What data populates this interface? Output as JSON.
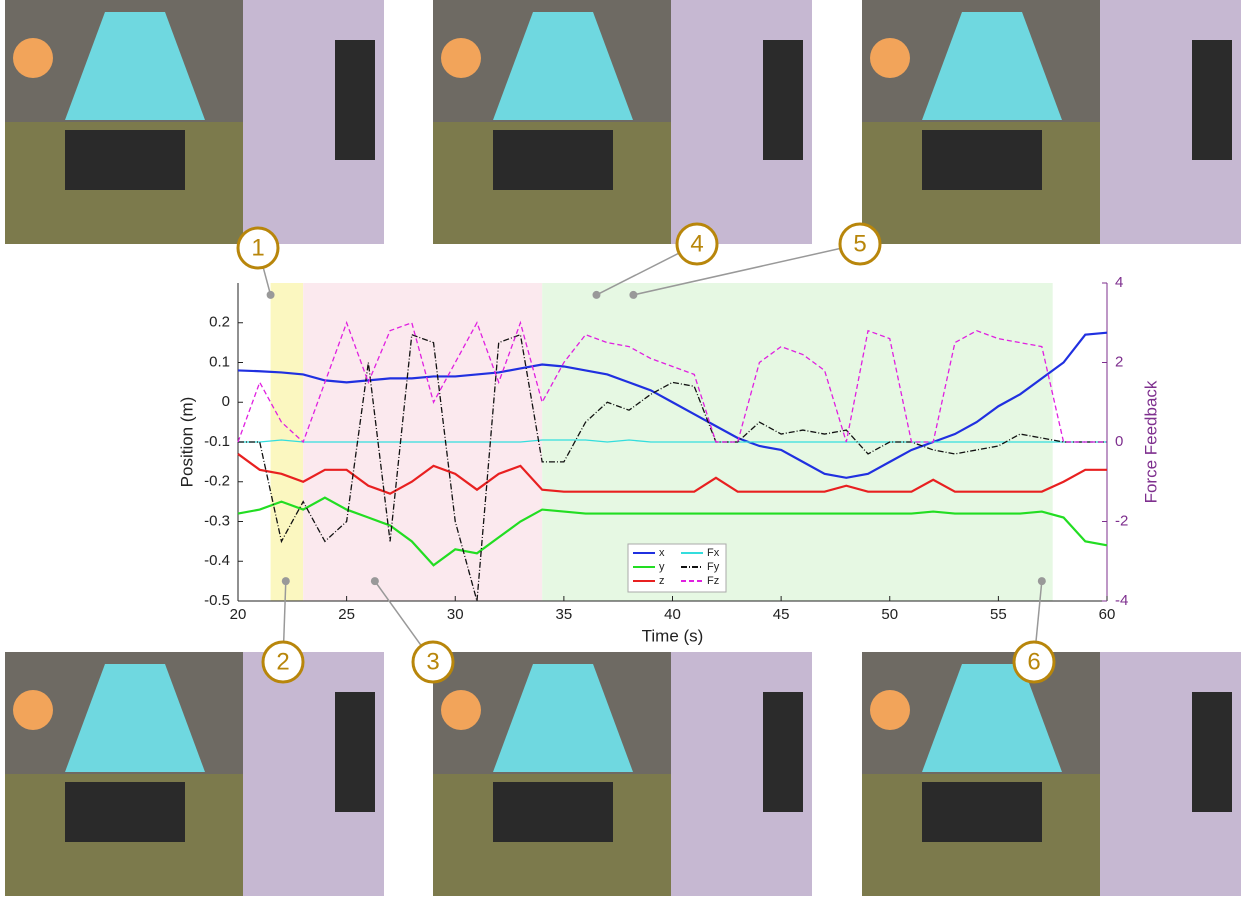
{
  "chart_data": {
    "type": "line",
    "x": [
      20,
      21,
      22,
      23,
      24,
      25,
      26,
      27,
      28,
      29,
      30,
      31,
      32,
      33,
      34,
      35,
      36,
      37,
      38,
      39,
      40,
      41,
      42,
      43,
      44,
      45,
      46,
      47,
      48,
      49,
      50,
      51,
      52,
      53,
      54,
      55,
      56,
      57,
      58,
      59,
      60
    ],
    "xlabel": "Time (s)",
    "ylabel": "Position (m)",
    "y2label": "Force Feedback",
    "xlim": [
      20,
      60
    ],
    "xticks": [
      20,
      25,
      30,
      35,
      40,
      45,
      50,
      55,
      60
    ],
    "ylim": [
      -0.5,
      0.3
    ],
    "yticks": [
      -0.5,
      -0.4,
      -0.3,
      -0.2,
      -0.1,
      0,
      0.1,
      0.2
    ],
    "y2lim": [
      -4,
      4
    ],
    "y2ticks": [
      -4,
      -2,
      0,
      2,
      4
    ],
    "y2color": "#7e2f8e",
    "regions": [
      {
        "start": 21.5,
        "end": 23,
        "color": "#fbf7c0"
      },
      {
        "start": 23,
        "end": 34,
        "color": "#fbe9ee"
      },
      {
        "start": 34,
        "end": 57.5,
        "color": "#e6f8e3"
      }
    ],
    "series": [
      {
        "name": "x",
        "color": "#2030e0",
        "dash": "solid",
        "axis": "y",
        "values": [
          0.08,
          0.078,
          0.075,
          0.07,
          0.055,
          0.05,
          0.055,
          0.06,
          0.06,
          0.065,
          0.065,
          0.07,
          0.075,
          0.085,
          0.095,
          0.09,
          0.08,
          0.07,
          0.05,
          0.03,
          0.0,
          -0.03,
          -0.06,
          -0.09,
          -0.11,
          -0.12,
          -0.15,
          -0.18,
          -0.19,
          -0.18,
          -0.15,
          -0.12,
          -0.1,
          -0.08,
          -0.05,
          -0.01,
          0.02,
          0.06,
          0.1,
          0.17,
          0.175
        ]
      },
      {
        "name": "y",
        "color": "#22dd22",
        "dash": "solid",
        "axis": "y",
        "values": [
          -0.28,
          -0.27,
          -0.25,
          -0.27,
          -0.24,
          -0.27,
          -0.29,
          -0.31,
          -0.35,
          -0.41,
          -0.37,
          -0.38,
          -0.34,
          -0.3,
          -0.27,
          -0.275,
          -0.28,
          -0.28,
          -0.28,
          -0.28,
          -0.28,
          -0.28,
          -0.28,
          -0.28,
          -0.28,
          -0.28,
          -0.28,
          -0.28,
          -0.28,
          -0.28,
          -0.28,
          -0.28,
          -0.275,
          -0.28,
          -0.28,
          -0.28,
          -0.28,
          -0.275,
          -0.29,
          -0.35,
          -0.36
        ]
      },
      {
        "name": "z",
        "color": "#e82020",
        "dash": "solid",
        "axis": "y",
        "values": [
          -0.13,
          -0.17,
          -0.18,
          -0.2,
          -0.17,
          -0.17,
          -0.21,
          -0.23,
          -0.2,
          -0.16,
          -0.18,
          -0.22,
          -0.18,
          -0.16,
          -0.22,
          -0.225,
          -0.225,
          -0.225,
          -0.225,
          -0.225,
          -0.225,
          -0.225,
          -0.19,
          -0.225,
          -0.225,
          -0.225,
          -0.225,
          -0.225,
          -0.21,
          -0.225,
          -0.225,
          -0.225,
          -0.195,
          -0.225,
          -0.225,
          -0.225,
          -0.225,
          -0.225,
          -0.2,
          -0.17,
          -0.17
        ]
      },
      {
        "name": "Fx",
        "color": "#33dddd",
        "dash": "solid",
        "axis": "y2",
        "values": [
          0,
          0,
          0.05,
          0,
          0,
          0,
          0,
          0,
          0,
          0,
          0,
          0,
          0,
          0,
          0.05,
          0.05,
          0.05,
          0,
          0.05,
          0,
          0,
          0,
          0,
          0,
          0,
          0,
          0,
          0,
          0,
          0,
          0,
          0,
          0,
          0,
          0,
          0,
          0,
          0,
          0,
          0,
          0
        ]
      },
      {
        "name": "Fy",
        "color": "#111111",
        "dash": "dashdot",
        "axis": "y2",
        "values": [
          0,
          0,
          -2.5,
          -1.5,
          -2.5,
          -2,
          2,
          -2.5,
          2.7,
          2.5,
          -2,
          -4,
          2.5,
          2.7,
          -0.5,
          -0.5,
          0.5,
          1,
          0.8,
          1.2,
          1.5,
          1.4,
          0,
          0,
          0.5,
          0.2,
          0.3,
          0.2,
          0.3,
          -0.3,
          0,
          0,
          -0.2,
          -0.3,
          -0.2,
          -0.1,
          0.2,
          0.1,
          0,
          0,
          0
        ]
      },
      {
        "name": "Fz",
        "color": "#e020e0",
        "dash": "dashed",
        "axis": "y2",
        "values": [
          0,
          1.5,
          0.5,
          0,
          1.5,
          3,
          1.5,
          2.8,
          3,
          1,
          2,
          3,
          1.5,
          3,
          1,
          2,
          2.7,
          2.5,
          2.4,
          2.1,
          1.9,
          1.7,
          0,
          0,
          2,
          2.4,
          2.2,
          1.8,
          0,
          2.8,
          2.6,
          0,
          0,
          2.5,
          2.8,
          2.6,
          2.5,
          2.4,
          0,
          0,
          0
        ]
      }
    ],
    "annotations": [
      {
        "label": "1",
        "x": 21.5,
        "y": 0.27
      },
      {
        "label": "2",
        "x": 22.2,
        "y": -0.45
      },
      {
        "label": "3",
        "x": 26.3,
        "y": -0.45
      },
      {
        "label": "4",
        "x": 36.5,
        "y": 0.27
      },
      {
        "label": "5",
        "x": 38.2,
        "y": 0.27
      },
      {
        "label": "6",
        "x": 57,
        "y": -0.45
      }
    ]
  }
}
